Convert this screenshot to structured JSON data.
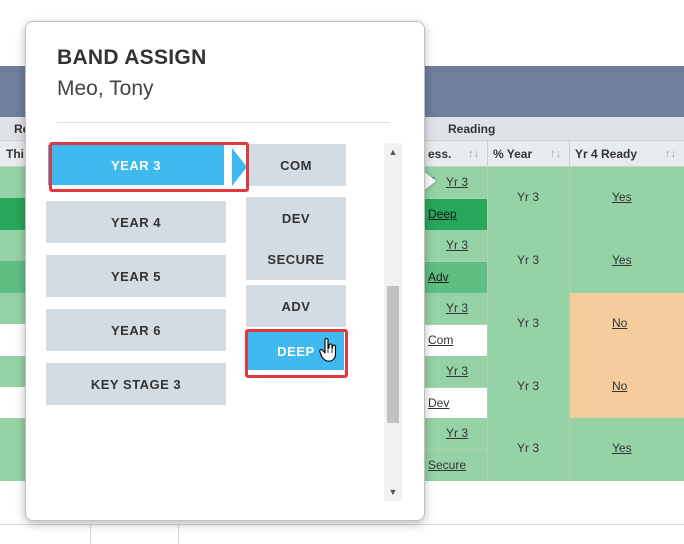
{
  "popup": {
    "title": "BAND ASSIGN",
    "student": "Meo, Tony",
    "years": [
      {
        "label": "YEAR 3",
        "active": true
      },
      {
        "label": "YEAR 4",
        "active": false
      },
      {
        "label": "YEAR 5",
        "active": false
      },
      {
        "label": "YEAR 6",
        "active": false
      },
      {
        "label": "KEY STAGE 3",
        "active": false
      }
    ],
    "bands": [
      {
        "label": "COM",
        "active": false
      },
      {
        "label": "DEV",
        "active": false
      },
      {
        "label": "SECURE",
        "active": false
      },
      {
        "label": "ADV",
        "active": false
      },
      {
        "label": "DEEP",
        "active": true
      }
    ],
    "scroll_up_icon": "▲",
    "scroll_down_icon": "▼"
  },
  "grid": {
    "group_left": "Re",
    "group_reading": "Reading",
    "col_left": "Thi",
    "col_assess": "ess.",
    "col_percent_year": "% Year",
    "col_yr4_ready": "Yr 4 Ready",
    "sort_icon": "↑↓",
    "rows": [
      {
        "year": "Yr 3",
        "band": "Deep",
        "percent_year": "Yr 3",
        "ready": "Yes",
        "ready_color": "#95d3a6",
        "band_bg": "#27a75a",
        "band_fg": "#1a1a1a",
        "check": true
      },
      {
        "year": "Yr 3",
        "band": "Adv",
        "percent_year": "Yr 3",
        "ready": "Yes",
        "ready_color": "#95d3a6",
        "band_bg": "#5fbe81",
        "band_fg": "#1a1a1a",
        "check": false
      },
      {
        "year": "Yr 3",
        "band": "Com",
        "percent_year": "Yr 3",
        "ready": "No",
        "ready_color": "#f5cc9b",
        "band_bg": "#ffffff",
        "band_fg": "#333333",
        "check": false
      },
      {
        "year": "Yr 3",
        "band": "Dev",
        "percent_year": "Yr 3",
        "ready": "No",
        "ready_color": "#f5cc9b",
        "band_bg": "#ffffff",
        "band_fg": "#333333",
        "check": false
      },
      {
        "year": "Yr 3",
        "band": "Secure",
        "percent_year": "Yr 3",
        "ready": "Yes",
        "ready_color": "#95d3a6",
        "band_bg": "#95d3a6",
        "band_fg": "#333333",
        "check": false
      }
    ]
  },
  "colors": {
    "accent_blue": "#3ebaf0",
    "highlight_red": "#e0393e",
    "cell_green": "#95d3a6",
    "cell_orange": "#f5cc9b",
    "header_bar": "#6e7f9c"
  }
}
